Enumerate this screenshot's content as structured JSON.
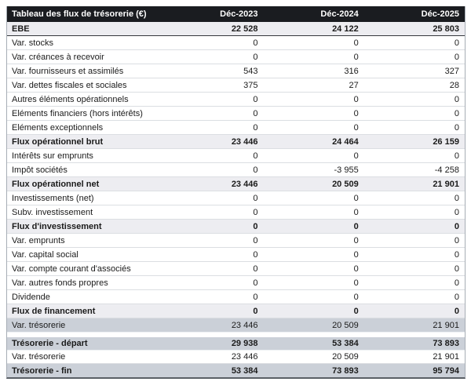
{
  "chart_data": {
    "type": "table",
    "title": "Tableau des flux de trésorerie (€)",
    "columns": [
      "Déc-2023",
      "Déc-2024",
      "Déc-2025"
    ],
    "rows": [
      {
        "label": "EBE",
        "values": [
          "22 528",
          "24 122",
          "25 803"
        ],
        "type": "subtotal",
        "divider": true
      },
      {
        "label": "Var. stocks",
        "values": [
          "0",
          "0",
          "0"
        ],
        "type": "detail"
      },
      {
        "label": "Var. créances à recevoir",
        "values": [
          "0",
          "0",
          "0"
        ],
        "type": "detail"
      },
      {
        "label": "Var. fournisseurs et assimilés",
        "values": [
          "543",
          "316",
          "327"
        ],
        "type": "detail"
      },
      {
        "label": "Var. dettes fiscales et sociales",
        "values": [
          "375",
          "27",
          "28"
        ],
        "type": "detail"
      },
      {
        "label": "Autres éléments opérationnels",
        "values": [
          "0",
          "0",
          "0"
        ],
        "type": "detail"
      },
      {
        "label": "Eléments financiers (hors intérêts)",
        "values": [
          "0",
          "0",
          "0"
        ],
        "type": "detail"
      },
      {
        "label": "Eléments exceptionnels",
        "values": [
          "0",
          "0",
          "0"
        ],
        "type": "detail"
      },
      {
        "label": "Flux opérationnel brut",
        "values": [
          "23 446",
          "24 464",
          "26 159"
        ],
        "type": "subtotal"
      },
      {
        "label": "Intérêts sur emprunts",
        "values": [
          "0",
          "0",
          "0"
        ],
        "type": "detail"
      },
      {
        "label": "Impôt sociétés",
        "values": [
          "0",
          "-3 955",
          "-4 258"
        ],
        "type": "detail"
      },
      {
        "label": "Flux opérationnel net",
        "values": [
          "23 446",
          "20 509",
          "21 901"
        ],
        "type": "subtotal"
      },
      {
        "label": "Investissements (net)",
        "values": [
          "0",
          "0",
          "0"
        ],
        "type": "detail"
      },
      {
        "label": "Subv. investissement",
        "values": [
          "0",
          "0",
          "0"
        ],
        "type": "detail"
      },
      {
        "label": "Flux d'investissement",
        "values": [
          "0",
          "0",
          "0"
        ],
        "type": "subtotal"
      },
      {
        "label": "Var. emprunts",
        "values": [
          "0",
          "0",
          "0"
        ],
        "type": "detail"
      },
      {
        "label": "Var. capital social",
        "values": [
          "0",
          "0",
          "0"
        ],
        "type": "detail"
      },
      {
        "label": "Var. compte courant d'associés",
        "values": [
          "0",
          "0",
          "0"
        ],
        "type": "detail"
      },
      {
        "label": "Var. autres fonds propres",
        "values": [
          "0",
          "0",
          "0"
        ],
        "type": "detail"
      },
      {
        "label": "Dividende",
        "values": [
          "0",
          "0",
          "0"
        ],
        "type": "detail"
      },
      {
        "label": "Flux de financement",
        "values": [
          "0",
          "0",
          "0"
        ],
        "type": "subtotal"
      },
      {
        "label": "Var. trésorerie",
        "values": [
          "23 446",
          "20 509",
          "21 901"
        ],
        "type": "total-plain"
      }
    ],
    "summary_rows": [
      {
        "label": "Trésorerie - départ",
        "values": [
          "29 938",
          "53 384",
          "73 893"
        ],
        "type": "total"
      },
      {
        "label": "Var. trésorerie",
        "values": [
          "23 446",
          "20 509",
          "21 901"
        ],
        "type": "detail"
      },
      {
        "label": "Trésorerie - fin",
        "values": [
          "53 384",
          "73 893",
          "95 794"
        ],
        "type": "total"
      }
    ],
    "colors": {
      "header_bg": "#1a1c20",
      "header_text": "#ffffff",
      "subtotal_row_bg": "#ededf1",
      "total_row_bg": "#cbd0d8",
      "text": "#1b1b1b"
    }
  }
}
